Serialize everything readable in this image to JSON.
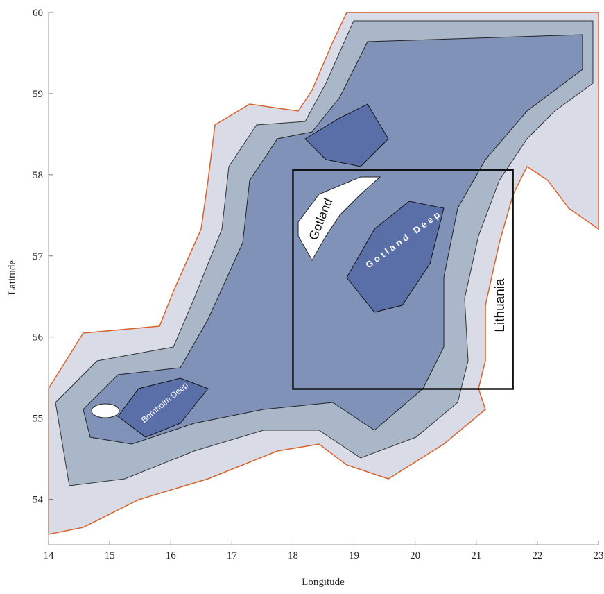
{
  "chart_data": {
    "type": "map",
    "x_label": "Longitude",
    "y_label": "Latitude",
    "xlim": [
      14,
      23
    ],
    "ylim": [
      53.44,
      60
    ],
    "xticks": [
      14,
      15,
      16,
      17,
      18,
      19,
      20,
      21,
      22,
      23
    ],
    "yticks": [
      54,
      55,
      56,
      57,
      58,
      59,
      60
    ],
    "box": {
      "lon": [
        18,
        21.6
      ],
      "lat": [
        55.36,
        58.06
      ]
    },
    "places": [
      "Gotland",
      "Gotland Deep",
      "Lithuania",
      "Bornholm Deep"
    ]
  }
}
